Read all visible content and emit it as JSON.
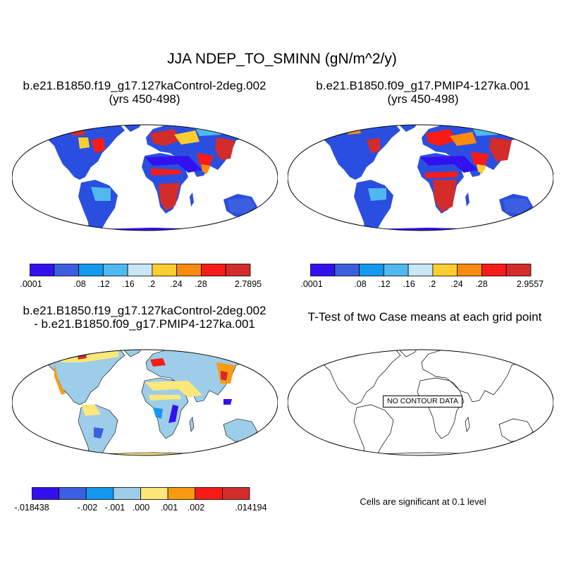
{
  "title": "JJA NDEP_TO_SMINN (gN/m^2/y)",
  "panels": {
    "top_left": {
      "title_line1": "b.e21.B1850.f19_g17.127kaControl-2deg.002",
      "title_line2": "(yrs 450-498)",
      "colorbar": {
        "colors": [
          "#3311ee",
          "#3c5fe0",
          "#1598f0",
          "#4fb8f0",
          "#c8e6f5",
          "#fccf2e",
          "#fa8b0f",
          "#f91b17",
          "#d42b2b"
        ],
        "labels": [
          ".0001",
          ".08",
          ".12",
          ".16",
          ".2",
          ".24",
          ".28",
          "2.7895"
        ]
      }
    },
    "top_right": {
      "title_line1": "b.e21.B1850.f09_g17.PMIP4-127ka.001",
      "title_line2": "(yrs 450-498)",
      "colorbar": {
        "colors": [
          "#3311ee",
          "#3c5fe0",
          "#1598f0",
          "#4fb8f0",
          "#c8e6f5",
          "#fccf2e",
          "#fa8b0f",
          "#f91b17",
          "#d42b2b"
        ],
        "labels": [
          ".0001",
          ".08",
          ".12",
          ".16",
          ".2",
          ".24",
          ".28",
          "2.9557"
        ]
      }
    },
    "bottom_left": {
      "title_line1": "b.e21.B1850.f19_g17.127kaControl-2deg.002",
      "title_line2": "- b.e21.B1850.f09_g17.PMIP4-127ka.001",
      "colorbar": {
        "colors": [
          "#3311ee",
          "#3c5fe0",
          "#1598f0",
          "#9dcde8",
          "#fbe77a",
          "#fa9a10",
          "#f91b17",
          "#d42b2b"
        ],
        "labels": [
          "-.018438",
          "-.002",
          "-.001",
          ".000",
          ".001",
          ".002",
          ".014194"
        ]
      }
    },
    "bottom_right": {
      "title": "T-Test of two Case means at each grid point",
      "no_data_label": "NO CONTOUR DATA",
      "footnote": "Cells are significant at 0.1 level"
    }
  }
}
